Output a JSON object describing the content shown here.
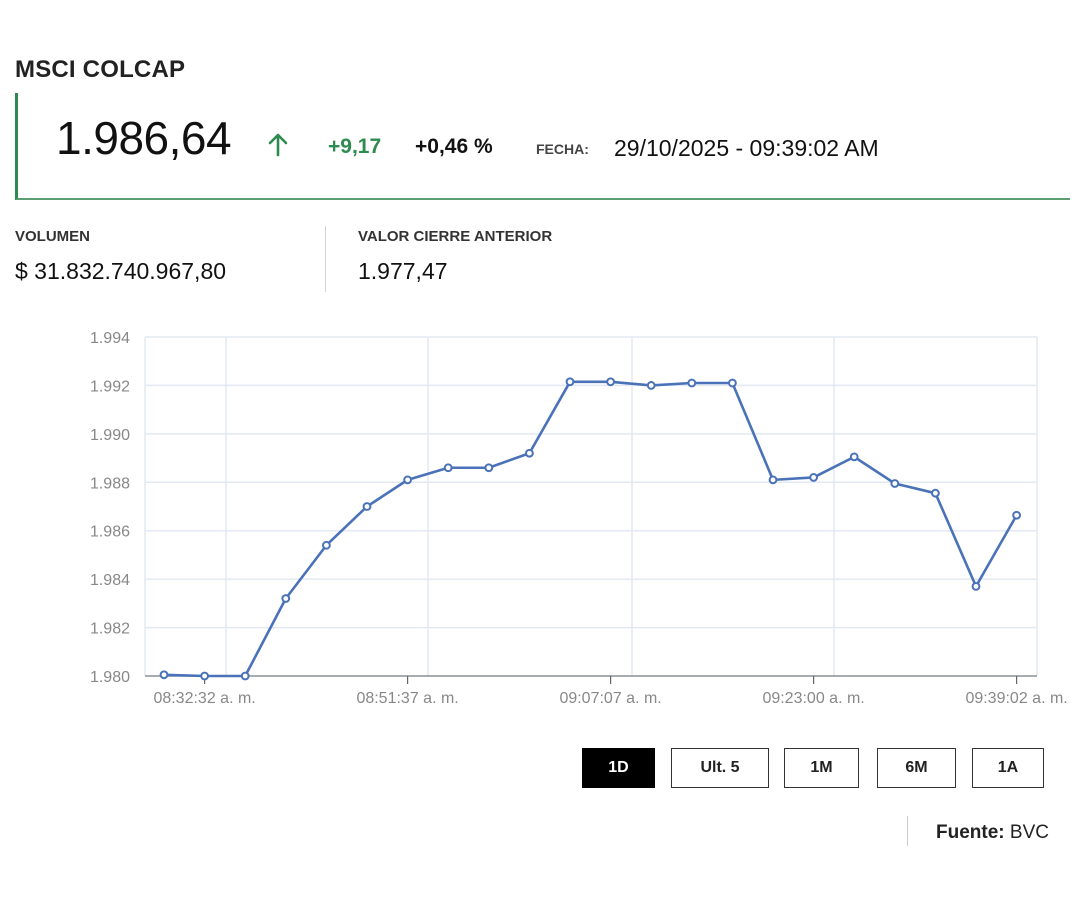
{
  "header": {
    "title": "MSCI COLCAP",
    "price": "1.986,64",
    "direction_icon": "arrow-up-icon",
    "change": "+9,17",
    "change_pct": "+0,46 %",
    "fecha_label": "FECHA:",
    "fecha_value": "29/10/2025 - 09:39:02 AM",
    "accent_color": "#2e8b4f"
  },
  "stats": {
    "volumen_label": "VOLUMEN",
    "volumen_value": "$ 31.832.740.967,80",
    "cierre_label": "VALOR CIERRE ANTERIOR",
    "cierre_value": "1.977,47"
  },
  "chart_data": {
    "type": "line",
    "title": "",
    "xlabel": "",
    "ylabel": "",
    "ylim": [
      1980,
      1994
    ],
    "y_ticks": [
      "1.980",
      "1.982",
      "1.984",
      "1.986",
      "1.988",
      "1.990",
      "1.992",
      "1.994"
    ],
    "x_tick_labels": [
      "08:32:32 a. m.",
      "08:51:37 a. m.",
      "09:07:07 a. m.",
      "09:23:00 a. m.",
      "09:39:02 a. m."
    ],
    "x_tick_indices": [
      1,
      6,
      11,
      16,
      21
    ],
    "grid": true,
    "line_color": "#4a72b8",
    "series": [
      {
        "name": "MSCI COLCAP",
        "values": [
          1980.05,
          1980.0,
          1980.0,
          1983.2,
          1985.4,
          1987.0,
          1988.1,
          1988.6,
          1988.6,
          1989.2,
          1992.15,
          1992.15,
          1992.0,
          1992.1,
          1992.1,
          1988.1,
          1988.2,
          1989.05,
          1987.95,
          1987.55,
          1983.7,
          1986.64
        ]
      }
    ]
  },
  "ranges": [
    {
      "label": "1D",
      "active": true
    },
    {
      "label": "Ult. 5",
      "active": false
    },
    {
      "label": "1M",
      "active": false
    },
    {
      "label": "6M",
      "active": false
    },
    {
      "label": "1A",
      "active": false
    }
  ],
  "source": {
    "label": "Fuente:",
    "value": "BVC"
  }
}
